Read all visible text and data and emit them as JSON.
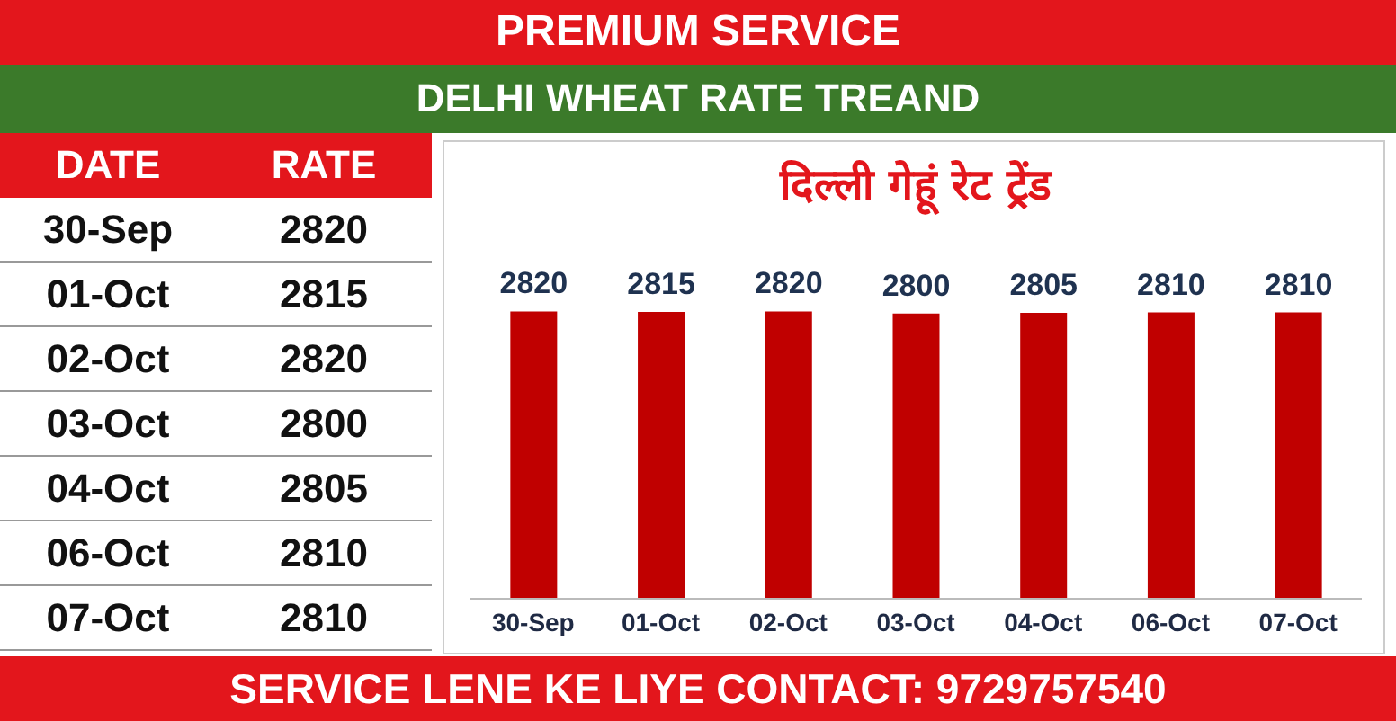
{
  "chart_data": [
    {
      "type": "other",
      "title": "PREMIUM SERVICE",
      "subtitle": "DELHI WHEAT RATE TREAND",
      "annotations": [
        "DATE",
        "RATE",
        "SERVICE LENE KE LIYE CONTACT: 9729757540"
      ],
      "categories": [
        "30-Sep",
        "01-Oct",
        "02-Oct",
        "03-Oct",
        "04-Oct",
        "06-Oct",
        "07-Oct"
      ],
      "values": [
        2820,
        2815,
        2820,
        2800,
        2805,
        2810,
        2810
      ],
      "data_labels": true
    },
    {
      "type": "bar",
      "title": "दिल्ली गेहूं रेट ट्रेंड",
      "categories": [
        "30-Sep",
        "01-Oct",
        "02-Oct",
        "03-Oct",
        "04-Oct",
        "06-Oct",
        "07-Oct"
      ],
      "values": [
        2820,
        2815,
        2820,
        2800,
        2805,
        2810,
        2810
      ],
      "color": "#c00000",
      "data_labels": true,
      "tick_labels": "x"
    }
  ]
}
